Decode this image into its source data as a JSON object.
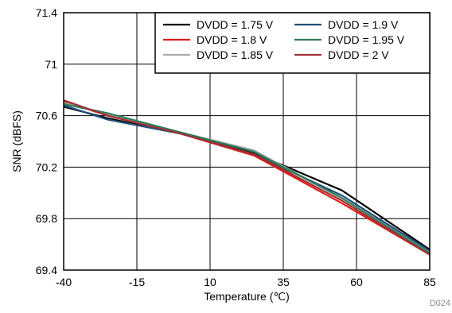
{
  "chart_data": {
    "type": "line",
    "xlabel": "Temperature (℃)",
    "ylabel": "SNR (dBFS)",
    "xlim": [
      -40,
      85
    ],
    "ylim": [
      69.4,
      71.4
    ],
    "x_ticks": [
      "-40",
      "-15",
      "10",
      "35",
      "60",
      "85"
    ],
    "y_ticks": [
      "69.4",
      "69.8",
      "70.2",
      "70.6",
      "71",
      "71.4"
    ],
    "grid": true,
    "legend_position": "top-right",
    "legend_columns": 2,
    "figure_id": "D024",
    "series": [
      {
        "name": "DVDD = 1.75 V",
        "color": "#000000",
        "x": [
          -40,
          -25,
          0,
          25,
          55,
          85
        ],
        "y": [
          70.67,
          70.58,
          70.46,
          70.31,
          70.02,
          69.56
        ]
      },
      {
        "name": "DVDD = 1.8 V",
        "color": "#e31b1b",
        "x": [
          -40,
          -25,
          0,
          25,
          55,
          85
        ],
        "y": [
          70.71,
          70.6,
          70.46,
          70.29,
          69.92,
          69.52
        ]
      },
      {
        "name": "DVDD = 1.85 V",
        "color": "#aaaaaa",
        "x": [
          -40,
          -25,
          0,
          25,
          55,
          85
        ],
        "y": [
          70.7,
          70.61,
          70.47,
          70.33,
          69.96,
          69.54
        ]
      },
      {
        "name": "DVDD = 1.9 V",
        "color": "#1f4e79",
        "x": [
          -40,
          -25,
          0,
          25,
          55,
          85
        ],
        "y": [
          70.68,
          70.57,
          70.46,
          70.3,
          69.98,
          69.55
        ]
      },
      {
        "name": "DVDD = 1.95 V",
        "color": "#2e7d5b",
        "x": [
          -40,
          -25,
          0,
          25,
          55,
          85
        ],
        "y": [
          70.69,
          70.62,
          70.47,
          70.32,
          69.96,
          69.53
        ]
      },
      {
        "name": "DVDD = 2 V",
        "color": "#a03033",
        "x": [
          -40,
          -25,
          0,
          25,
          55,
          85
        ],
        "y": [
          70.72,
          70.6,
          70.46,
          70.3,
          69.94,
          69.52
        ]
      }
    ]
  }
}
